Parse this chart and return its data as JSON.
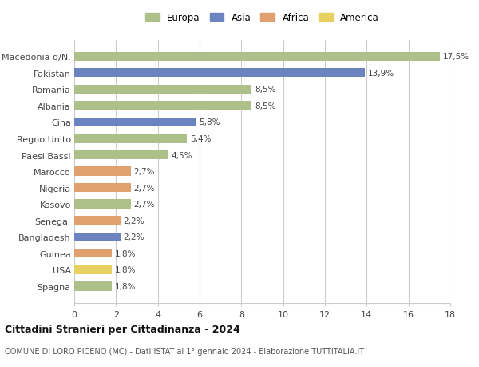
{
  "categories": [
    "Spagna",
    "USA",
    "Guinea",
    "Bangladesh",
    "Senegal",
    "Kosovo",
    "Nigeria",
    "Marocco",
    "Paesi Bassi",
    "Regno Unito",
    "Cina",
    "Albania",
    "Romania",
    "Pakistan",
    "Macedonia d/N."
  ],
  "values": [
    1.8,
    1.8,
    1.8,
    2.2,
    2.2,
    2.7,
    2.7,
    2.7,
    4.5,
    5.4,
    5.8,
    8.5,
    8.5,
    13.9,
    17.5
  ],
  "continents": [
    "Europa",
    "America",
    "Africa",
    "Asia",
    "Africa",
    "Europa",
    "Africa",
    "Africa",
    "Europa",
    "Europa",
    "Asia",
    "Europa",
    "Europa",
    "Asia",
    "Europa"
  ],
  "colors": {
    "Europa": "#adc08a",
    "Asia": "#6b84c0",
    "Africa": "#e0a070",
    "America": "#e8d060"
  },
  "legend_order": [
    "Europa",
    "Asia",
    "Africa",
    "America"
  ],
  "xlim": [
    0,
    18
  ],
  "xticks": [
    0,
    2,
    4,
    6,
    8,
    10,
    12,
    14,
    16,
    18
  ],
  "title": "Cittadini Stranieri per Cittadinanza - 2024",
  "subtitle": "COMUNE DI LORO PICENO (MC) - Dati ISTAT al 1° gennaio 2024 - Elaborazione TUTTITALIA.IT",
  "bg_color": "#ffffff",
  "grid_color": "#cccccc",
  "label_color": "#444444",
  "bar_height": 0.55
}
